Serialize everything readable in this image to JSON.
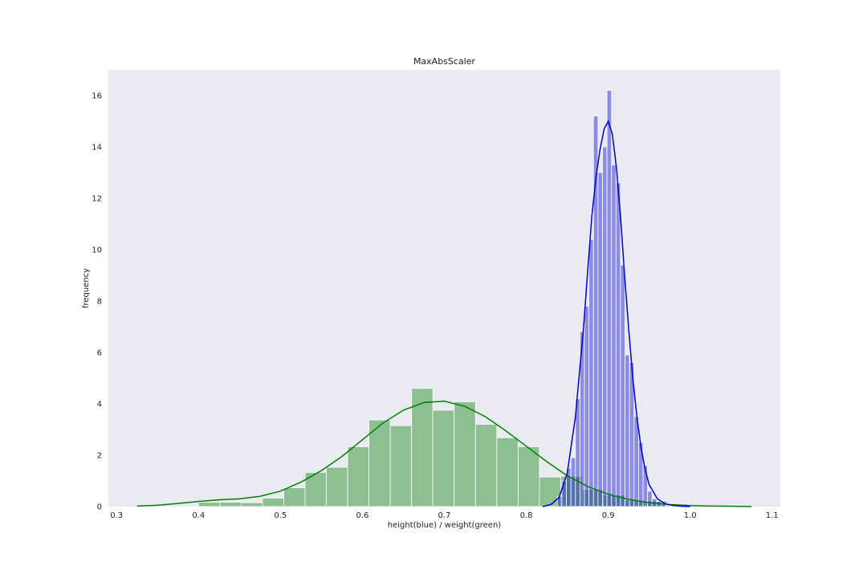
{
  "chart_data": {
    "type": "bar",
    "title": "MaxAbsScaler",
    "xlabel": "height(blue) / weight(green)",
    "ylabel": "frequency",
    "xlim": [
      0.29,
      1.11
    ],
    "ylim": [
      0,
      17.0
    ],
    "xticks": [
      "0.3",
      "0.4",
      "0.5",
      "0.6",
      "0.7",
      "0.8",
      "0.9",
      "1.0",
      "1.1"
    ],
    "yticks": [
      "0",
      "2",
      "4",
      "6",
      "8",
      "10",
      "12",
      "14",
      "16"
    ],
    "grid": false,
    "background": "#eaeaf2",
    "series": [
      {
        "color": "#008000",
        "histogram": {
          "bin_edges": [
            0.4,
            0.426,
            0.452,
            0.478,
            0.504,
            0.53,
            0.556,
            0.582,
            0.608,
            0.634,
            0.66,
            0.686,
            0.712,
            0.738,
            0.764,
            0.79,
            0.816,
            0.842,
            0.868,
            0.894,
            0.92,
            0.946,
            0.972
          ],
          "values": [
            0.17,
            0.17,
            0.15,
            0.33,
            0.73,
            1.33,
            1.53,
            2.33,
            3.37,
            3.15,
            4.6,
            3.75,
            4.08,
            3.2,
            2.68,
            2.33,
            1.15,
            1.18,
            0.67,
            0.45,
            0.25,
            0.22
          ]
        },
        "kde": {
          "x": [
            0.325,
            0.35,
            0.375,
            0.4,
            0.425,
            0.45,
            0.475,
            0.5,
            0.525,
            0.55,
            0.575,
            0.6,
            0.625,
            0.65,
            0.675,
            0.7,
            0.725,
            0.75,
            0.775,
            0.8,
            0.825,
            0.85,
            0.875,
            0.9,
            0.925,
            0.95,
            0.975,
            1.0,
            1.025,
            1.05,
            1.075
          ],
          "y": [
            0.02,
            0.05,
            0.12,
            0.2,
            0.26,
            0.3,
            0.4,
            0.6,
            0.95,
            1.4,
            1.95,
            2.6,
            3.25,
            3.75,
            4.05,
            4.1,
            3.9,
            3.5,
            2.95,
            2.35,
            1.75,
            1.2,
            0.78,
            0.48,
            0.28,
            0.15,
            0.08,
            0.04,
            0.02,
            0.01,
            0.0
          ]
        }
      },
      {
        "color": "#0000cc",
        "histogram": {
          "bin_edges": [
            0.838,
            0.8435,
            0.849,
            0.8545,
            0.86,
            0.8655,
            0.871,
            0.8765,
            0.882,
            0.8875,
            0.893,
            0.8985,
            0.904,
            0.9095,
            0.915,
            0.9205,
            0.926,
            0.9315,
            0.937,
            0.9425,
            0.948,
            0.9535,
            0.959,
            0.9645,
            0.97,
            0.9755,
            0.981,
            0.9865,
            0.992,
            0.9975,
            1.003
          ],
          "values": [
            0.4,
            1.0,
            1.5,
            1.9,
            4.2,
            6.8,
            7.8,
            10.4,
            15.2,
            13.0,
            14.0,
            16.2,
            13.3,
            12.6,
            9.4,
            5.9,
            5.6,
            3.5,
            2.5,
            1.6,
            0.6,
            0.3,
            0.2,
            0.1,
            0.05,
            0.03,
            0.03,
            0.1,
            0.1,
            0.05
          ]
        },
        "kde": {
          "x": [
            0.82,
            0.83,
            0.84,
            0.85,
            0.86,
            0.87,
            0.875,
            0.88,
            0.885,
            0.89,
            0.895,
            0.9,
            0.905,
            0.91,
            0.915,
            0.92,
            0.925,
            0.93,
            0.935,
            0.94,
            0.945,
            0.95,
            0.96,
            0.97,
            0.98,
            0.99,
            1.0
          ],
          "y": [
            0.0,
            0.08,
            0.35,
            1.3,
            3.5,
            7.0,
            9.2,
            11.3,
            12.8,
            13.9,
            14.7,
            15.0,
            14.5,
            13.2,
            11.3,
            9.0,
            6.9,
            5.0,
            3.5,
            2.3,
            1.45,
            0.85,
            0.3,
            0.1,
            0.04,
            0.01,
            0.0
          ]
        }
      }
    ]
  }
}
